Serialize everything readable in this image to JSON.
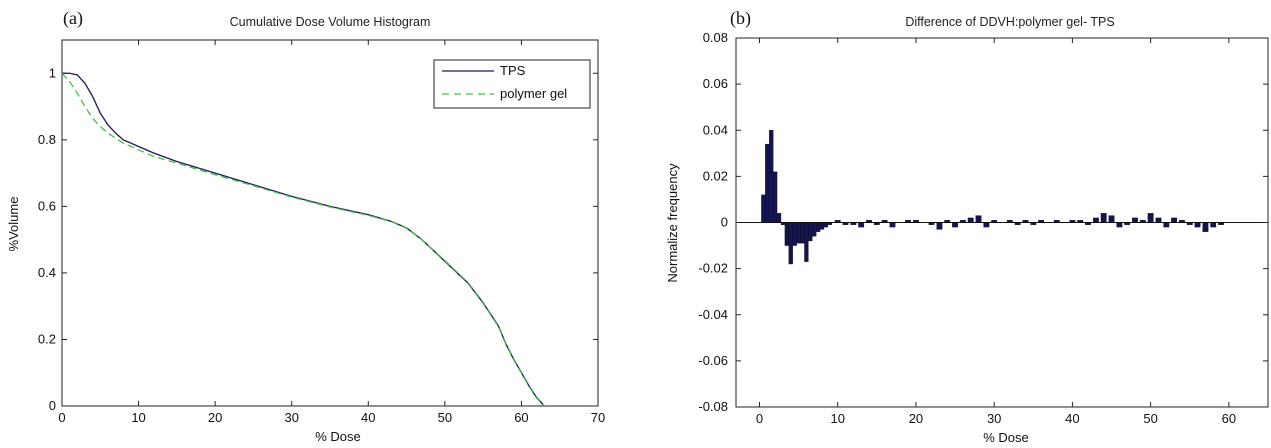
{
  "chart_data": [
    {
      "type": "line",
      "panel_label": "(a)",
      "title": "Cumulative Dose Volume Histogram",
      "xlabel": "% Dose",
      "ylabel": "%Volume",
      "xlim": [
        0,
        70
      ],
      "ylim": [
        0,
        1.1
      ],
      "xticks": [
        "0",
        "10",
        "20",
        "30",
        "40",
        "50",
        "60",
        "70"
      ],
      "yticks": [
        "0",
        "0.2",
        "0.4",
        "0.6",
        "0.8",
        "1"
      ],
      "legend_position": "top-right",
      "series": [
        {
          "name": "TPS",
          "color": "#1a1a5a",
          "x": [
            0,
            1,
            2,
            3,
            4,
            5,
            6,
            7,
            8,
            10,
            12,
            15,
            20,
            25,
            30,
            35,
            40,
            43,
            45,
            47,
            50,
            53,
            55,
            57,
            58,
            59,
            60,
            61,
            62,
            63
          ],
          "y": [
            1.0,
            1.0,
            0.995,
            0.97,
            0.93,
            0.88,
            0.845,
            0.82,
            0.8,
            0.78,
            0.76,
            0.735,
            0.7,
            0.665,
            0.63,
            0.6,
            0.575,
            0.555,
            0.535,
            0.5,
            0.435,
            0.37,
            0.31,
            0.24,
            0.185,
            0.14,
            0.1,
            0.06,
            0.025,
            0.0
          ]
        },
        {
          "name": "polymer gel",
          "color": "#44c044",
          "dashed": true,
          "x": [
            0,
            1,
            2,
            3,
            4,
            5,
            6,
            7,
            8,
            10,
            12,
            15,
            20,
            25,
            30,
            35,
            40,
            43,
            45,
            47,
            50,
            53,
            55,
            57,
            58,
            59,
            60,
            61,
            62,
            63
          ],
          "y": [
            1.0,
            0.975,
            0.94,
            0.9,
            0.865,
            0.84,
            0.82,
            0.805,
            0.79,
            0.77,
            0.75,
            0.73,
            0.695,
            0.662,
            0.628,
            0.598,
            0.573,
            0.554,
            0.534,
            0.5,
            0.437,
            0.372,
            0.312,
            0.242,
            0.187,
            0.142,
            0.102,
            0.062,
            0.027,
            0.0
          ]
        }
      ]
    },
    {
      "type": "bar",
      "panel_label": "(b)",
      "title": "Difference of DDVH:polymer gel- TPS",
      "xlabel": "% Dose",
      "ylabel": "Normalize frequency",
      "xlim": [
        -3,
        65
      ],
      "ylim": [
        -0.08,
        0.08
      ],
      "xticks": [
        "0",
        "10",
        "20",
        "30",
        "40",
        "50",
        "60"
      ],
      "yticks": [
        "-0.08",
        "-0.06",
        "-0.04",
        "-0.02",
        "0",
        "0.02",
        "0.04",
        "0.06",
        "0.08"
      ],
      "bar_color": "#141450",
      "series": [
        {
          "x": [
            0.5,
            1,
            1.5,
            2,
            2.5,
            3,
            3.5,
            4,
            4.5,
            5,
            5.5,
            6,
            6.5,
            7,
            7.5,
            8,
            8.5,
            9,
            10,
            11,
            12,
            13,
            14,
            15,
            16,
            17,
            18,
            19,
            20,
            21,
            22,
            23,
            24,
            25,
            26,
            27,
            28,
            29,
            30,
            31,
            32,
            33,
            34,
            35,
            36,
            37,
            38,
            39,
            40,
            41,
            42,
            43,
            44,
            45,
            46,
            47,
            48,
            49,
            50,
            51,
            52,
            53,
            54,
            55,
            56,
            57,
            58,
            59,
            60
          ],
          "values": [
            0.012,
            0.034,
            0.04,
            0.022,
            0.004,
            -0.001,
            -0.01,
            -0.018,
            -0.01,
            -0.009,
            -0.009,
            -0.017,
            -0.008,
            -0.006,
            -0.004,
            -0.003,
            -0.002,
            -0.001,
            0.001,
            -0.001,
            -0.001,
            -0.002,
            0.001,
            -0.001,
            0.001,
            -0.002,
            0.0,
            0.001,
            0.001,
            0.0,
            -0.001,
            -0.003,
            0.001,
            -0.002,
            0.001,
            0.002,
            0.003,
            -0.002,
            0.001,
            0.0,
            0.001,
            -0.001,
            0.001,
            -0.001,
            0.001,
            0.0,
            0.001,
            0.0,
            0.001,
            0.001,
            -0.001,
            0.002,
            0.004,
            0.003,
            -0.002,
            -0.001,
            0.002,
            0.001,
            0.004,
            0.002,
            -0.002,
            0.002,
            0.001,
            -0.001,
            -0.002,
            -0.004,
            -0.002,
            -0.001,
            0.0
          ]
        }
      ]
    }
  ]
}
